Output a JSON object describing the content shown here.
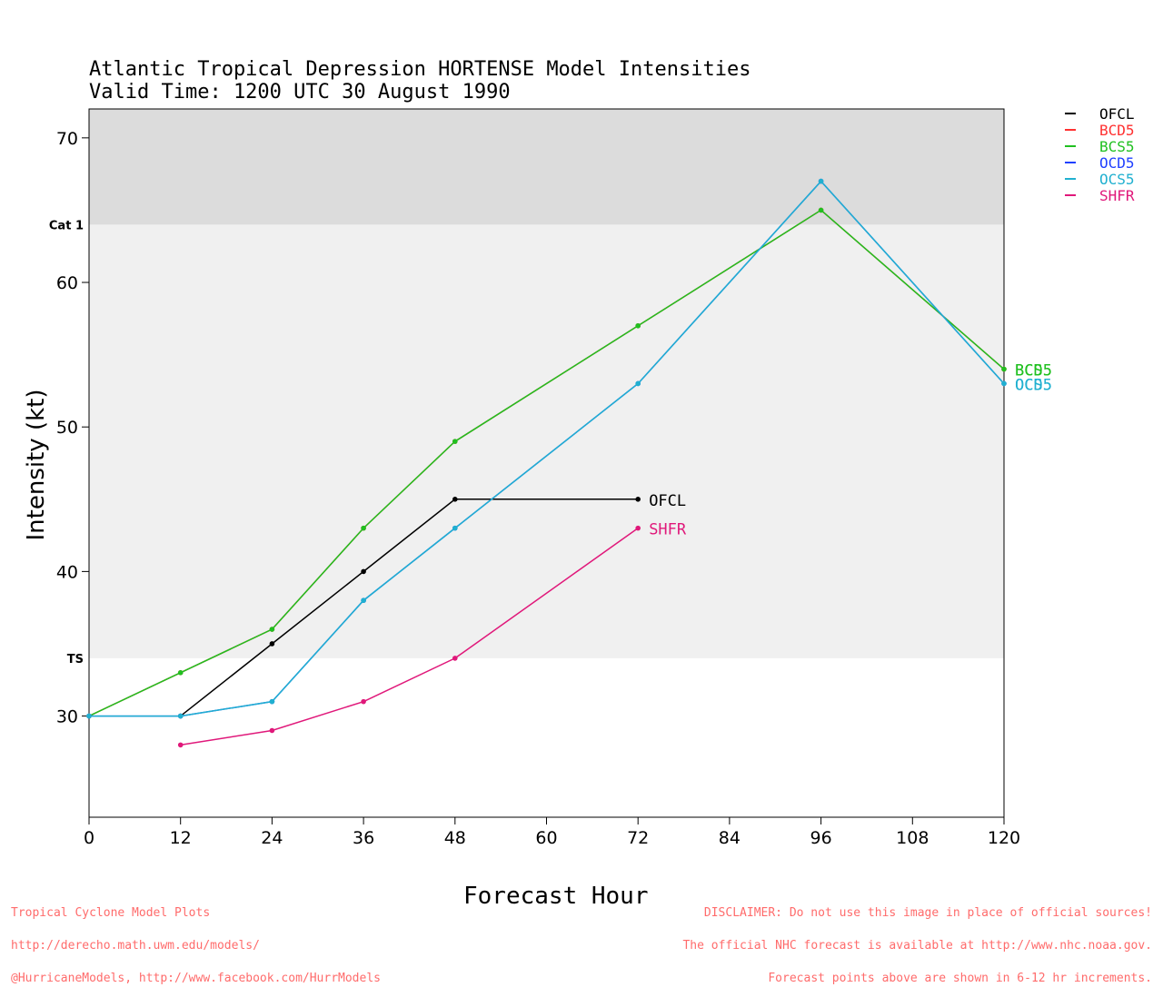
{
  "title": {
    "line1": "Atlantic Tropical Depression HORTENSE Model Intensities",
    "line2": "Valid Time: 1200 UTC 30 August 1990"
  },
  "footer": {
    "left": [
      "Tropical Cyclone Model Plots",
      "http://derecho.math.uwm.edu/models/",
      "@HurricaneModels, http://www.facebook.com/HurrModels"
    ],
    "right": [
      "DISCLAIMER: Do not use this image in place of official sources!",
      "The official NHC forecast is available at http://www.nhc.noaa.gov.",
      "Forecast points above are shown in 6-12 hr increments."
    ]
  },
  "chart_data": {
    "type": "line",
    "xlabel": "Forecast Hour",
    "ylabel": "Intensity (kt)",
    "xlim": [
      0,
      120
    ],
    "ylim": [
      23,
      72
    ],
    "xticks": [
      0,
      12,
      24,
      36,
      48,
      60,
      72,
      84,
      96,
      108,
      120
    ],
    "yticks": [
      30,
      40,
      50,
      60,
      70
    ],
    "bands": [
      {
        "label": "TS",
        "from": 34,
        "to": 64,
        "color": "#f0f0f0"
      },
      {
        "label": "Cat 1",
        "from": 64,
        "to": 72,
        "color": "#dcdcdc"
      }
    ],
    "legend_position": "top-right, outside plot",
    "series": [
      {
        "name": "OFCL",
        "color": "#000000",
        "x": [
          12,
          24,
          36,
          48,
          72
        ],
        "y": [
          30,
          35,
          40,
          45,
          45
        ],
        "end_label": "OFCL",
        "end_label_color": "#000000"
      },
      {
        "name": "BCD5",
        "color": "#ff3030",
        "x": [
          0,
          12,
          24,
          36,
          48,
          72,
          96,
          120
        ],
        "y": [
          30,
          33,
          36,
          43,
          49,
          57,
          65,
          54
        ],
        "end_label": "BCD5",
        "end_label_color": "#20c020"
      },
      {
        "name": "BCS5",
        "color": "#20c020",
        "x": [
          0,
          12,
          24,
          36,
          48,
          72,
          96,
          120
        ],
        "y": [
          30,
          33,
          36,
          43,
          49,
          57,
          65,
          54
        ],
        "end_label": "BCS5",
        "end_label_color": "#20c020"
      },
      {
        "name": "OCD5",
        "color": "#2040ff",
        "x": [
          0,
          12,
          24,
          36,
          48,
          72,
          96,
          120
        ],
        "y": [
          30,
          30,
          31,
          38,
          43,
          53,
          67,
          53
        ],
        "end_label": "OCD5",
        "end_label_color": "#20b0d0"
      },
      {
        "name": "OCS5",
        "color": "#20b0d0",
        "x": [
          0,
          12,
          24,
          36,
          48,
          72,
          96,
          120
        ],
        "y": [
          30,
          30,
          31,
          38,
          43,
          53,
          67,
          53
        ],
        "end_label": "OCS5",
        "end_label_color": "#20b0d0"
      },
      {
        "name": "SHFR",
        "color": "#e0187a",
        "x": [
          12,
          24,
          36,
          48,
          72
        ],
        "y": [
          28,
          29,
          31,
          34,
          43
        ],
        "end_label": "SHFR",
        "end_label_color": "#e0187a"
      }
    ]
  }
}
